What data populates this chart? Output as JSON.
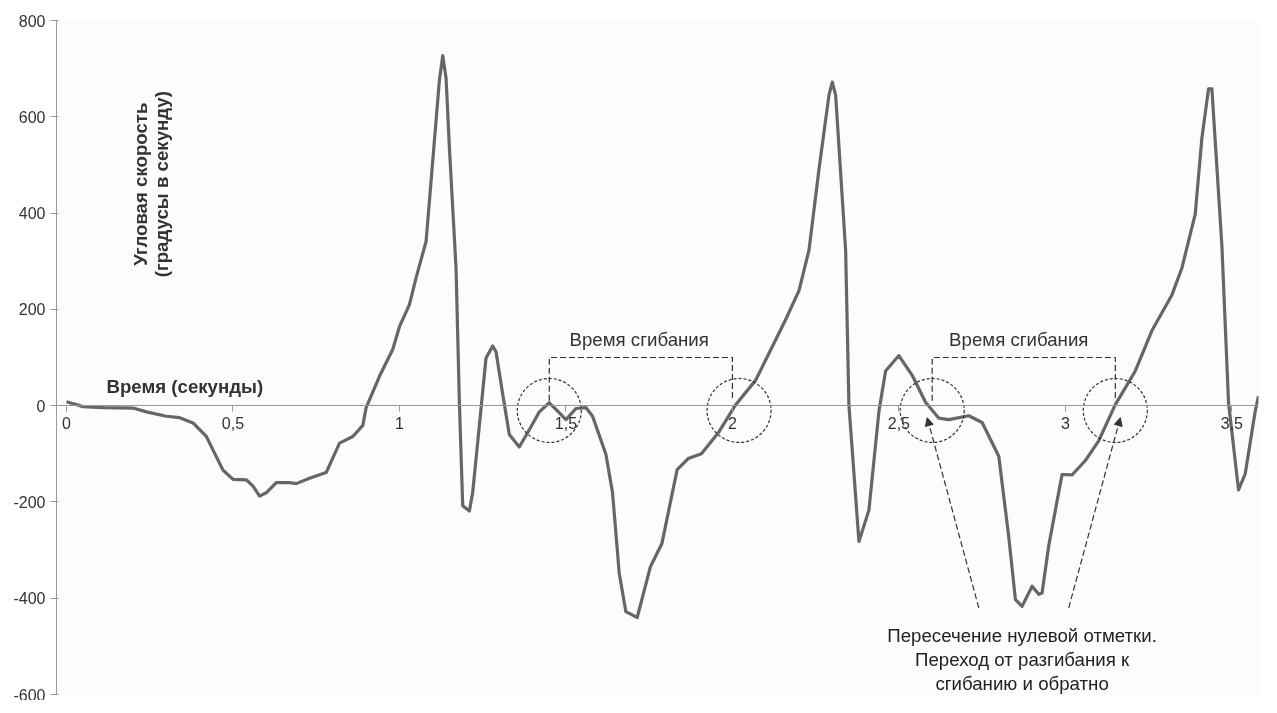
{
  "chart_data": {
    "type": "line",
    "xlabel": "Время (секунды)",
    "ylabel": "Угловая скорость\n(градусы в секунду)",
    "x": [
      0,
      0.05,
      0.11,
      0.2,
      0.24,
      0.3,
      0.34,
      0.38,
      0.42,
      0.47,
      0.5,
      0.54,
      0.56,
      0.58,
      0.6,
      0.63,
      0.67,
      0.69,
      0.73,
      0.78,
      0.82,
      0.86,
      0.89,
      0.9,
      0.94,
      0.98,
      1.0,
      1.03,
      1.05,
      1.08,
      1.1,
      1.12,
      1.13,
      1.14,
      1.15,
      1.17,
      1.18,
      1.19,
      1.21,
      1.22,
      1.24,
      1.26,
      1.28,
      1.29,
      1.31,
      1.33,
      1.36,
      1.39,
      1.42,
      1.45,
      1.47,
      1.5,
      1.53,
      1.56,
      1.58,
      1.62,
      1.64,
      1.66,
      1.68,
      1.714,
      1.754,
      1.788,
      1.834,
      1.867,
      1.907,
      1.96,
      2.01,
      2.07,
      2.12,
      2.16,
      2.2,
      2.23,
      2.26,
      2.29,
      2.3,
      2.31,
      2.34,
      2.35,
      2.38,
      2.41,
      2.44,
      2.46,
      2.5,
      2.54,
      2.58,
      2.62,
      2.65,
      2.71,
      2.75,
      2.8,
      2.83,
      2.85,
      2.87,
      2.9,
      2.92,
      2.93,
      2.95,
      2.99,
      3.02,
      3.06,
      3.1,
      3.15,
      3.21,
      3.26,
      3.32,
      3.35,
      3.39,
      3.41,
      3.43,
      3.44,
      3.47,
      3.49,
      3.52,
      3.54,
      3.57,
      3.58
    ],
    "series": [
      {
        "color": "#666666",
        "values": [
          8,
          -2,
          -4,
          -5,
          -13,
          -22,
          -25,
          -36,
          -64,
          -134,
          -153,
          -154,
          -167,
          -188,
          -181,
          -160,
          -160,
          -162,
          -151,
          -139,
          -78,
          -64,
          -41,
          -4,
          61,
          117,
          164,
          210,
          266,
          341,
          509,
          676,
          727,
          680,
          536,
          285,
          6,
          -208,
          -219,
          -180,
          -41,
          99,
          124,
          112,
          24,
          -60,
          -86,
          -50,
          -13,
          6,
          -8,
          -29,
          -6,
          -4,
          -22,
          -101,
          -181,
          -348,
          -428,
          -440,
          -334,
          -287,
          -133,
          -110,
          -100,
          -54,
          2,
          53,
          123,
          179,
          239,
          323,
          491,
          645,
          672,
          645,
          323,
          0,
          -282,
          -217,
          -12,
          72,
          104,
          63,
          7,
          -26,
          -29,
          -21,
          -35,
          -105,
          -273,
          -403,
          -417,
          -375,
          -392,
          -389,
          -291,
          -143,
          -144,
          -114,
          -73,
          2,
          72,
          156,
          230,
          286,
          398,
          556,
          658,
          658,
          333,
          6,
          -175,
          -142,
          -12,
          20
        ]
      }
    ],
    "xlim": [
      -0.03,
      3.58
    ],
    "ylim": [
      -600,
      800
    ],
    "xticks": [
      0,
      {
        "value": 0.5,
        "label": "0,5"
      },
      1,
      {
        "value": 1.5,
        "label": "1,5"
      },
      2,
      {
        "value": 2.5,
        "label": "2,5"
      },
      3,
      {
        "value": 3.5,
        "label": "3,5"
      }
    ],
    "yticks": [
      -600,
      -400,
      -200,
      0,
      200,
      400,
      600,
      800
    ],
    "annotations": [
      "Время сгибания",
      "Время сгибания",
      "Пересечение нулевой отметки.\nПереход от разгибания к\nсгибанию и обратно"
    ],
    "grid": false,
    "marker": "none",
    "line_style": "solid"
  }
}
